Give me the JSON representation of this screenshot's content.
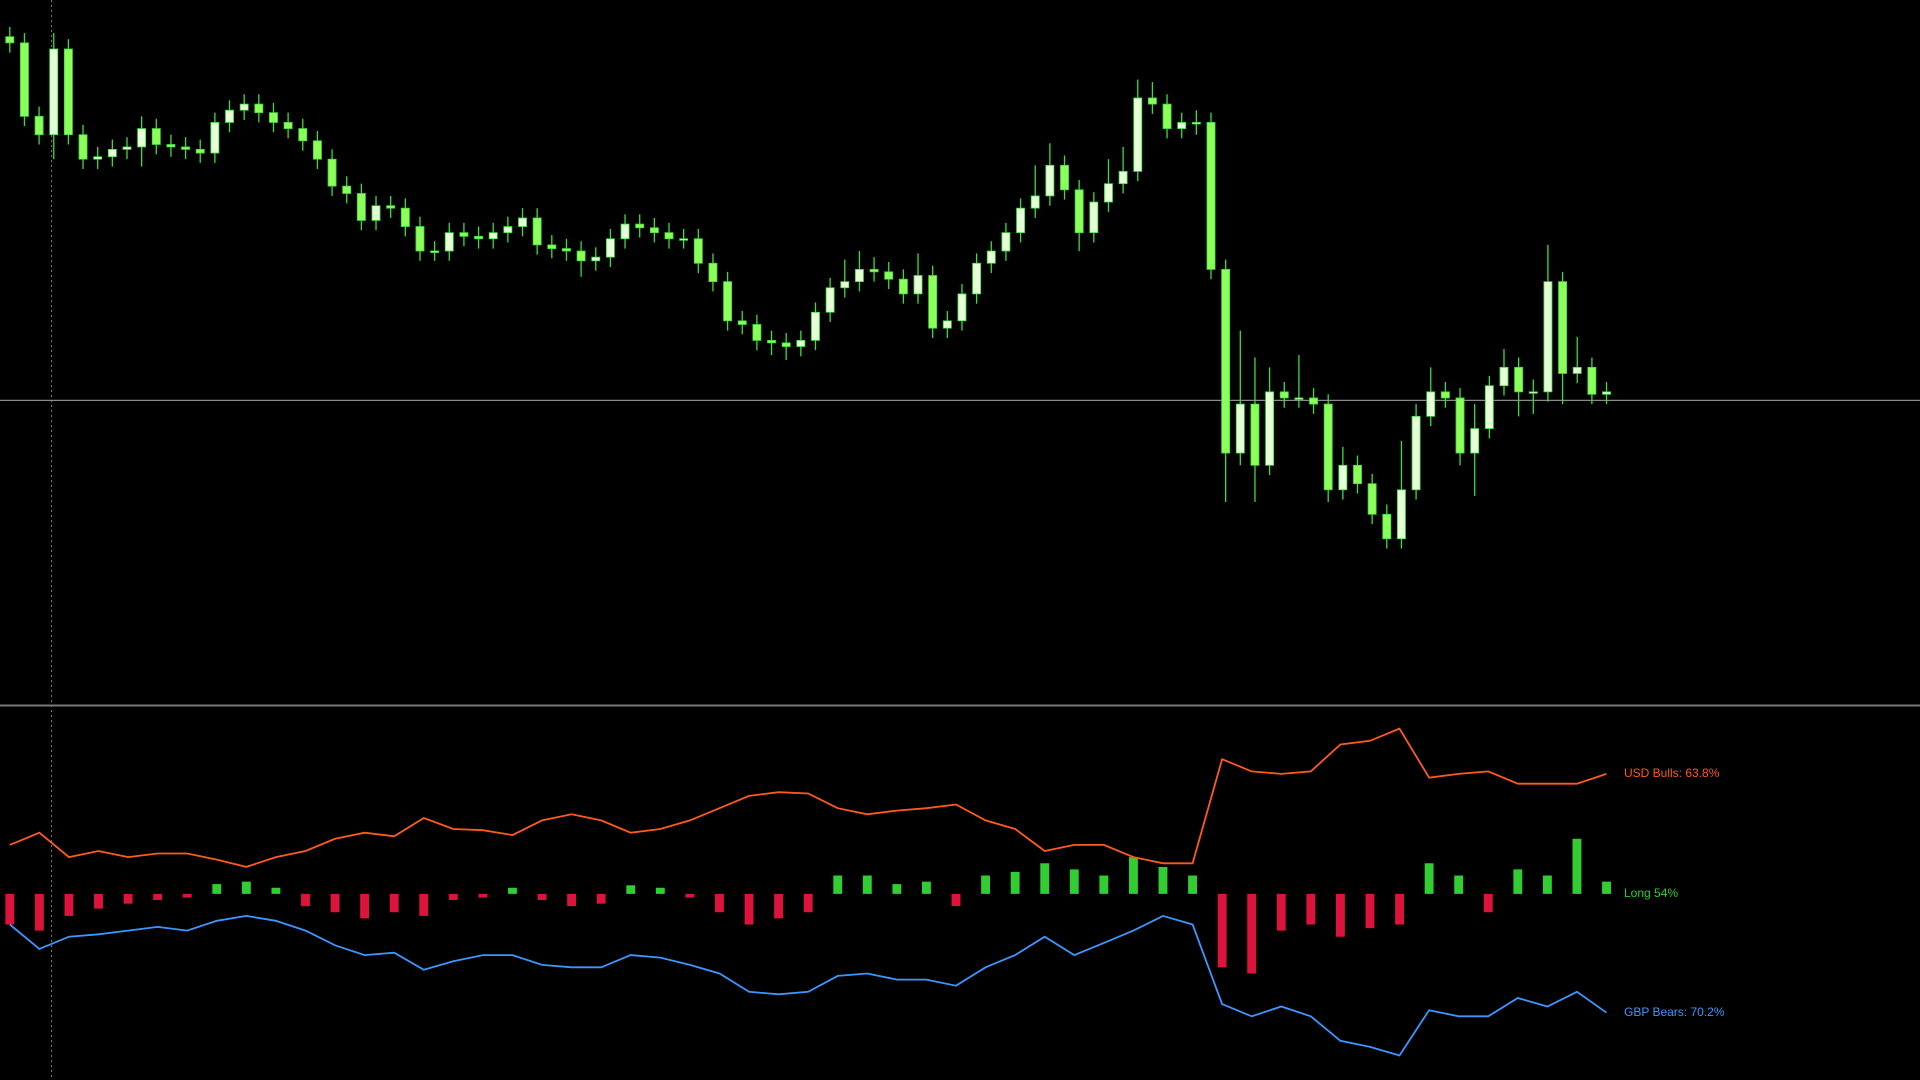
{
  "chart_data": [
    {
      "type": "candlestick",
      "ylim": [
        0,
        576
      ],
      "hline": 249,
      "up_color": "#e6ffd8",
      "down_color": "#8cff5a",
      "wick_color": "#3cdc3c",
      "hline_color": "#8a8a8a",
      "open": [
        546,
        541,
        481,
        466,
        536,
        466,
        446,
        448,
        454,
        456,
        471,
        458,
        456,
        454,
        451,
        476,
        486,
        491,
        484,
        476,
        471,
        461,
        446,
        424,
        418,
        396,
        408,
        406,
        391,
        371,
        371,
        386,
        383,
        381,
        386,
        391,
        398,
        376,
        373,
        371,
        363,
        366,
        381,
        393,
        390,
        386,
        381,
        381,
        361,
        346,
        314,
        311,
        298,
        296,
        293,
        298,
        321,
        341,
        346,
        356,
        354,
        348,
        336,
        351,
        308,
        314,
        336,
        361,
        371,
        386,
        406,
        416,
        441,
        421,
        386,
        411,
        426,
        436,
        496,
        491,
        471,
        476,
        476,
        356,
        206,
        246,
        196,
        256,
        251,
        251,
        246,
        176,
        196,
        181,
        156,
        136,
        176,
        236,
        256,
        251,
        206,
        226,
        261,
        276,
        256,
        256,
        346,
        271,
        276,
        254
      ],
      "high": [
        554,
        549,
        489,
        549,
        544,
        474,
        456,
        462,
        464,
        481,
        479,
        466,
        464,
        462,
        484,
        494,
        499,
        499,
        492,
        484,
        479,
        469,
        454,
        432,
        426,
        416,
        416,
        414,
        399,
        379,
        394,
        394,
        391,
        394,
        399,
        406,
        406,
        384,
        381,
        379,
        374,
        389,
        401,
        401,
        398,
        394,
        389,
        389,
        369,
        354,
        322,
        319,
        306,
        304,
        306,
        329,
        349,
        364,
        371,
        366,
        362,
        356,
        369,
        359,
        322,
        344,
        369,
        379,
        394,
        414,
        441,
        459,
        449,
        429,
        419,
        446,
        456,
        511,
        509,
        499,
        484,
        486,
        484,
        364,
        306,
        284,
        276,
        264,
        286,
        259,
        254,
        211,
        204,
        189,
        164,
        216,
        246,
        276,
        264,
        259,
        246,
        269,
        291,
        284,
        266,
        376,
        354,
        301,
        284,
        264
      ],
      "low": [
        533,
        473,
        458,
        446,
        458,
        438,
        438,
        440,
        446,
        440,
        450,
        448,
        446,
        443,
        443,
        468,
        478,
        476,
        468,
        463,
        453,
        438,
        416,
        410,
        388,
        388,
        398,
        383,
        363,
        363,
        363,
        375,
        373,
        373,
        378,
        383,
        368,
        365,
        363,
        350,
        355,
        358,
        373,
        382,
        378,
        373,
        373,
        353,
        338,
        306,
        303,
        290,
        286,
        282,
        285,
        290,
        313,
        333,
        338,
        346,
        340,
        328,
        328,
        300,
        300,
        306,
        328,
        353,
        363,
        378,
        398,
        408,
        413,
        371,
        378,
        403,
        418,
        428,
        483,
        463,
        463,
        466,
        348,
        166,
        196,
        166,
        188,
        243,
        243,
        238,
        166,
        168,
        173,
        148,
        128,
        128,
        168,
        228,
        243,
        196,
        171,
        218,
        253,
        236,
        238,
        248,
        246,
        263,
        246,
        246
      ],
      "close": [
        541,
        481,
        466,
        536,
        466,
        446,
        448,
        454,
        456,
        471,
        458,
        456,
        454,
        451,
        476,
        486,
        491,
        484,
        476,
        471,
        461,
        446,
        424,
        418,
        396,
        408,
        406,
        391,
        371,
        371,
        386,
        383,
        381,
        386,
        391,
        398,
        376,
        373,
        371,
        363,
        366,
        381,
        393,
        390,
        386,
        381,
        381,
        361,
        346,
        314,
        311,
        298,
        296,
        293,
        298,
        321,
        341,
        346,
        356,
        354,
        348,
        336,
        351,
        308,
        314,
        336,
        361,
        371,
        386,
        406,
        416,
        441,
        421,
        386,
        411,
        426,
        436,
        496,
        491,
        471,
        476,
        476,
        356,
        206,
        246,
        196,
        256,
        251,
        251,
        246,
        176,
        196,
        181,
        156,
        136,
        176,
        236,
        256,
        251,
        206,
        226,
        261,
        276,
        256,
        256,
        346,
        271,
        276,
        254,
        256
      ]
    },
    {
      "type": "combo",
      "ylim": [
        0,
        305
      ],
      "series": [
        {
          "name": "USD Bulls: 63.8%",
          "color": "#ff5a1e",
          "values": [
            192,
            202,
            182,
            187,
            182,
            185,
            185,
            180,
            174,
            182,
            187,
            197,
            202,
            199,
            214,
            205,
            204,
            200,
            212,
            217,
            212,
            202,
            205,
            212,
            222,
            232,
            235,
            234,
            222,
            217,
            220,
            222,
            225,
            212,
            205,
            187,
            192,
            192,
            182,
            177,
            177,
            262,
            252,
            250,
            252,
            274,
            277,
            287,
            247,
            250,
            252,
            242,
            242,
            242,
            250
          ]
        },
        {
          "name": "GBP Bears: 70.2%",
          "color": "#3c96ff",
          "values": [
            127,
            107,
            117,
            119,
            122,
            125,
            122,
            130,
            134,
            130,
            122,
            110,
            102,
            104,
            90,
            97,
            102,
            102,
            94,
            92,
            92,
            102,
            100,
            94,
            87,
            72,
            70,
            72,
            85,
            87,
            82,
            82,
            77,
            92,
            102,
            117,
            102,
            112,
            122,
            134,
            127,
            62,
            52,
            60,
            52,
            32,
            27,
            20,
            57,
            52,
            52,
            67,
            60,
            72,
            55
          ]
        }
      ],
      "histogram": {
        "name": "Long 54%",
        "ylim": [
          -152,
          153
        ],
        "up_color": "#32cd32",
        "down_color": "#dc143c",
        "label_color": "#32cd32",
        "values": [
          -25,
          -30,
          -18,
          -12,
          -8,
          -5,
          -3,
          8,
          10,
          5,
          -10,
          -15,
          -20,
          -15,
          -18,
          -5,
          -3,
          5,
          -5,
          -10,
          -8,
          7,
          5,
          -3,
          -15,
          -25,
          -20,
          -15,
          15,
          15,
          8,
          10,
          -10,
          15,
          18,
          25,
          20,
          15,
          30,
          22,
          15,
          -60,
          -65,
          -30,
          -25,
          -35,
          -28,
          -25,
          25,
          15,
          -15,
          20,
          15,
          45,
          10
        ]
      }
    }
  ]
}
